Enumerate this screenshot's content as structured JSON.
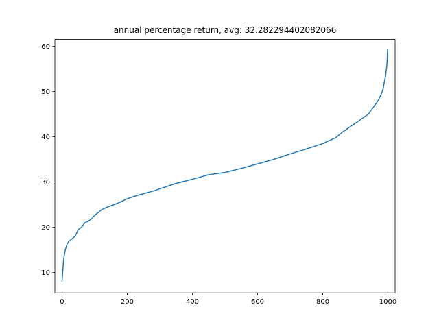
{
  "chart_data": {
    "type": "line",
    "title": "annual percentage return, avg: 32.282294402082066",
    "xlabel": "",
    "ylabel": "",
    "xlim": [
      -22,
      1022
    ],
    "ylim": [
      5.5,
      61.5
    ],
    "xticks": [
      0,
      200,
      400,
      600,
      800,
      1000
    ],
    "yticks": [
      10,
      20,
      30,
      40,
      50,
      60
    ],
    "grid": false,
    "legend": "none",
    "series": [
      {
        "color": "#1f77b4",
        "x": [
          0,
          2,
          5,
          10,
          15,
          20,
          30,
          40,
          50,
          60,
          70,
          80,
          90,
          100,
          110,
          120,
          140,
          160,
          180,
          200,
          220,
          250,
          280,
          300,
          350,
          400,
          450,
          500,
          550,
          600,
          650,
          700,
          750,
          800,
          840,
          860,
          880,
          900,
          920,
          940,
          950,
          960,
          970,
          980,
          985,
          990,
          993,
          995,
          997,
          998,
          999
        ],
        "y": [
          8.0,
          10.0,
          13.0,
          15.0,
          16.2,
          16.8,
          17.4,
          18.0,
          19.5,
          20.0,
          21.0,
          21.3,
          21.8,
          22.6,
          23.2,
          23.8,
          24.5,
          25.0,
          25.6,
          26.3,
          26.8,
          27.4,
          28.0,
          28.5,
          29.7,
          30.6,
          31.6,
          32.1,
          33.0,
          34.0,
          35.0,
          36.2,
          37.3,
          38.5,
          39.8,
          41.0,
          42.0,
          43.0,
          44.0,
          45.0,
          46.0,
          47.0,
          48.0,
          49.5,
          50.5,
          52.5,
          53.5,
          54.8,
          56.0,
          57.5,
          59.2
        ]
      }
    ]
  }
}
